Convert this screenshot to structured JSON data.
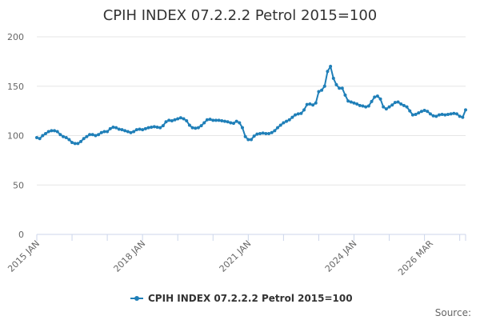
{
  "chart_data": {
    "type": "line",
    "title": "CPIH INDEX 07.2.2.2 Petrol 2015=100",
    "xlabel": "",
    "ylabel": "",
    "ylim": [
      0,
      200
    ],
    "yticks": [
      0,
      50,
      100,
      150,
      200
    ],
    "x_tick_labels": [
      "2015 JAN",
      "2018 JAN",
      "2021 JAN",
      "2024 JAN",
      "2026 MAR"
    ],
    "x_tick_label_indices": [
      0,
      36,
      72,
      108,
      134
    ],
    "legend_position": "bottom",
    "grid": true,
    "credit": "Source:",
    "colors": {
      "series": "#1f7fb8",
      "grid": "#e6e6e6",
      "axis": "#ccd6eb"
    },
    "series": [
      {
        "name": "CPIH INDEX 07.2.2.2 Petrol 2015=100",
        "values": [
          98.0,
          97.0,
          100.0,
          102.0,
          104.0,
          105.0,
          105.0,
          104.0,
          101.0,
          99.0,
          98.0,
          96.0,
          93.0,
          92.0,
          92.0,
          94.0,
          97.0,
          99.0,
          101.0,
          101.0,
          100.0,
          101.0,
          103.0,
          104.0,
          104.0,
          107.0,
          108.5,
          108.0,
          106.5,
          106.0,
          105.0,
          104.0,
          103.0,
          104.0,
          106.0,
          106.5,
          106.0,
          107.0,
          108.0,
          108.5,
          109.0,
          108.5,
          108.0,
          110.0,
          114.0,
          115.5,
          115.0,
          116.0,
          117.0,
          118.0,
          117.0,
          115.0,
          110.5,
          108.0,
          107.5,
          108.0,
          110.0,
          113.0,
          116.0,
          116.5,
          115.5,
          115.5,
          115.5,
          115.0,
          114.5,
          114.0,
          113.0,
          112.5,
          114.5,
          113.0,
          108.0,
          99.0,
          96.0,
          96.0,
          99.5,
          101.5,
          102.0,
          102.5,
          102.0,
          102.0,
          103.0,
          105.0,
          108.0,
          110.5,
          113.0,
          114.5,
          116.0,
          118.5,
          121.0,
          122.0,
          122.5,
          126.0,
          131.5,
          132.0,
          131.0,
          133.0,
          144.5,
          146.0,
          150.0,
          165.0,
          170.0,
          158.0,
          151.5,
          148.0,
          148.0,
          141.0,
          135.0,
          134.0,
          133.0,
          132.0,
          130.5,
          130.0,
          129.0,
          130.0,
          134.5,
          139.0,
          140.0,
          137.0,
          129.0,
          127.0,
          129.0,
          131.0,
          133.5,
          134.0,
          132.0,
          130.5,
          129.0,
          125.0,
          121.0,
          121.5,
          123.0,
          124.5,
          125.5,
          124.5,
          122.0,
          120.0,
          119.5,
          121.0,
          121.5,
          121.0,
          121.5,
          122.0,
          122.5,
          122.0,
          119.5,
          118.5,
          126.0
        ]
      }
    ]
  }
}
